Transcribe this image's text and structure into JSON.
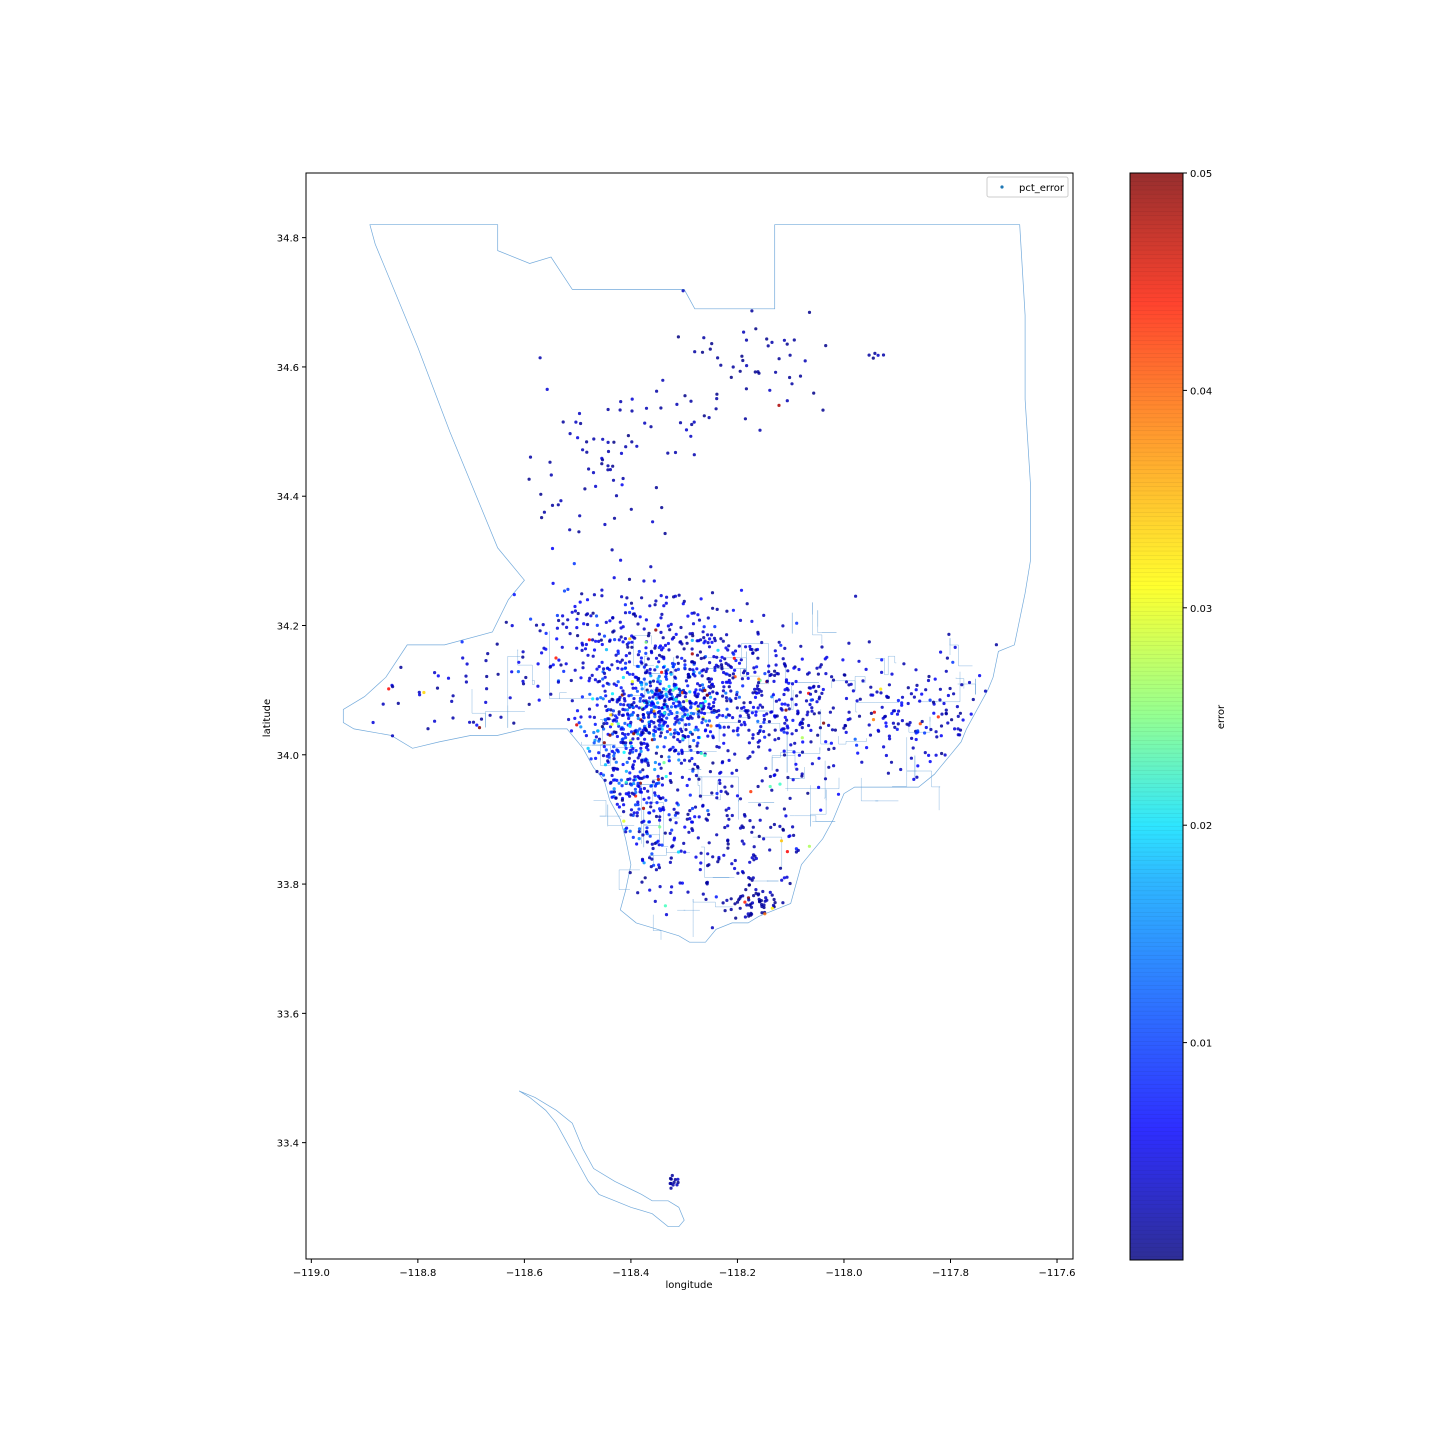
{
  "chart_data": {
    "type": "scatter",
    "xlabel": "longitude",
    "ylabel": "latitude",
    "xlim": [
      -119.01,
      -117.57
    ],
    "ylim": [
      33.22,
      34.9
    ],
    "xticks": [
      -119.0,
      -118.8,
      -118.6,
      -118.4,
      -118.2,
      -118.0,
      -117.8,
      -117.6
    ],
    "xtick_labels": [
      "−119.0",
      "−118.8",
      "−118.6",
      "−118.4",
      "−118.2",
      "−118.0",
      "−117.8",
      "−117.6"
    ],
    "yticks": [
      33.4,
      33.6,
      33.8,
      34.0,
      34.2,
      34.4,
      34.6,
      34.8
    ],
    "ytick_labels": [
      "33.4",
      "33.6",
      "33.8",
      "34.0",
      "34.2",
      "34.4",
      "34.6",
      "34.8"
    ],
    "legend": {
      "label": "pct_error",
      "position": "top-right"
    },
    "colorbar": {
      "label": "error",
      "range": [
        0.0,
        0.05
      ],
      "colormap": "jet",
      "ticks": [
        0.01,
        0.02,
        0.03,
        0.04,
        0.05
      ],
      "tick_labels": [
        "0.01",
        "0.02",
        "0.03",
        "0.04",
        "0.05"
      ]
    },
    "boundary_color": "#5b9bd5",
    "county_outline": [
      [
        -118.89,
        34.82
      ],
      [
        -118.65,
        34.82
      ],
      [
        -118.65,
        34.78
      ],
      [
        -118.59,
        34.76
      ],
      [
        -118.55,
        34.77
      ],
      [
        -118.51,
        34.72
      ],
      [
        -118.3,
        34.72
      ],
      [
        -118.28,
        34.69
      ],
      [
        -118.13,
        34.69
      ],
      [
        -118.13,
        34.82
      ],
      [
        -117.67,
        34.82
      ],
      [
        -117.66,
        34.68
      ],
      [
        -117.66,
        34.55
      ],
      [
        -117.65,
        34.42
      ],
      [
        -117.65,
        34.3
      ],
      [
        -117.66,
        34.25
      ],
      [
        -117.68,
        34.17
      ],
      [
        -117.71,
        34.16
      ],
      [
        -117.72,
        34.12
      ],
      [
        -117.73,
        34.1
      ],
      [
        -117.75,
        34.07
      ],
      [
        -117.77,
        34.04
      ],
      [
        -117.78,
        34.02
      ],
      [
        -117.8,
        34.0
      ],
      [
        -117.82,
        33.98
      ],
      [
        -117.83,
        33.97
      ],
      [
        -117.86,
        33.95
      ],
      [
        -117.9,
        33.95
      ],
      [
        -117.94,
        33.95
      ],
      [
        -117.98,
        33.95
      ],
      [
        -118.0,
        33.94
      ],
      [
        -118.01,
        33.92
      ],
      [
        -118.02,
        33.9
      ],
      [
        -118.04,
        33.87
      ],
      [
        -118.06,
        33.85
      ],
      [
        -118.08,
        33.83
      ],
      [
        -118.09,
        33.8
      ],
      [
        -118.1,
        33.77
      ],
      [
        -118.13,
        33.76
      ],
      [
        -118.16,
        33.75
      ],
      [
        -118.18,
        33.74
      ],
      [
        -118.21,
        33.74
      ],
      [
        -118.24,
        33.73
      ],
      [
        -118.26,
        33.71
      ],
      [
        -118.29,
        33.71
      ],
      [
        -118.31,
        33.72
      ],
      [
        -118.35,
        33.73
      ],
      [
        -118.39,
        33.74
      ],
      [
        -118.42,
        33.76
      ],
      [
        -118.41,
        33.79
      ],
      [
        -118.4,
        33.83
      ],
      [
        -118.41,
        33.87
      ],
      [
        -118.42,
        33.9
      ],
      [
        -118.44,
        33.93
      ],
      [
        -118.45,
        33.96
      ],
      [
        -118.47,
        33.98
      ],
      [
        -118.49,
        34.01
      ],
      [
        -118.52,
        34.04
      ],
      [
        -118.56,
        34.04
      ],
      [
        -118.6,
        34.04
      ],
      [
        -118.65,
        34.03
      ],
      [
        -118.7,
        34.03
      ],
      [
        -118.76,
        34.02
      ],
      [
        -118.81,
        34.01
      ],
      [
        -118.85,
        34.03
      ],
      [
        -118.92,
        34.04
      ],
      [
        -118.94,
        34.05
      ],
      [
        -118.94,
        34.07
      ],
      [
        -118.9,
        34.09
      ],
      [
        -118.86,
        34.12
      ],
      [
        -118.82,
        34.17
      ],
      [
        -118.75,
        34.17
      ],
      [
        -118.66,
        34.19
      ],
      [
        -118.63,
        34.24
      ],
      [
        -118.6,
        34.27
      ],
      [
        -118.65,
        34.32
      ],
      [
        -118.74,
        34.5
      ],
      [
        -118.8,
        34.63
      ],
      [
        -118.88,
        34.79
      ],
      [
        -118.89,
        34.82
      ]
    ],
    "island_outline": [
      [
        -118.61,
        33.48
      ],
      [
        -118.58,
        33.47
      ],
      [
        -118.54,
        33.45
      ],
      [
        -118.51,
        33.43
      ],
      [
        -118.49,
        33.39
      ],
      [
        -118.47,
        33.36
      ],
      [
        -118.43,
        33.34
      ],
      [
        -118.38,
        33.32
      ],
      [
        -118.36,
        33.31
      ],
      [
        -118.33,
        33.31
      ],
      [
        -118.31,
        33.3
      ],
      [
        -118.3,
        33.28
      ],
      [
        -118.31,
        33.27
      ],
      [
        -118.33,
        33.27
      ],
      [
        -118.36,
        33.29
      ],
      [
        -118.4,
        33.3
      ],
      [
        -118.43,
        33.31
      ],
      [
        -118.46,
        33.32
      ],
      [
        -118.48,
        33.34
      ],
      [
        -118.5,
        33.37
      ],
      [
        -118.52,
        33.4
      ],
      [
        -118.54,
        33.43
      ],
      [
        -118.56,
        33.45
      ],
      [
        -118.59,
        33.47
      ],
      [
        -118.61,
        33.48
      ]
    ],
    "clusters": [
      {
        "lon": -118.34,
        "lat": 34.08,
        "spread": [
          0.05,
          0.04
        ],
        "count": 380,
        "error_mean": 0.012
      },
      {
        "lon": -118.43,
        "lat": 34.03,
        "spread": [
          0.04,
          0.05
        ],
        "count": 220,
        "error_mean": 0.01
      },
      {
        "lon": -118.37,
        "lat": 33.93,
        "spread": [
          0.04,
          0.06
        ],
        "count": 200,
        "error_mean": 0.008
      },
      {
        "lon": -118.25,
        "lat": 34.07,
        "spread": [
          0.07,
          0.06
        ],
        "count": 200,
        "error_mean": 0.006
      },
      {
        "lon": -118.09,
        "lat": 34.08,
        "spread": [
          0.08,
          0.05
        ],
        "count": 220,
        "error_mean": 0.005
      },
      {
        "lon": -117.85,
        "lat": 34.07,
        "spread": [
          0.07,
          0.05
        ],
        "count": 150,
        "error_mean": 0.005
      },
      {
        "lon": -118.2,
        "lat": 33.88,
        "spread": [
          0.09,
          0.07
        ],
        "count": 180,
        "error_mean": 0.004
      },
      {
        "lon": -118.45,
        "lat": 34.18,
        "spread": [
          0.08,
          0.05
        ],
        "count": 180,
        "error_mean": 0.006
      },
      {
        "lon": -118.25,
        "lat": 34.17,
        "spread": [
          0.07,
          0.04
        ],
        "count": 120,
        "error_mean": 0.005
      },
      {
        "lon": -118.7,
        "lat": 34.1,
        "spread": [
          0.12,
          0.04
        ],
        "count": 70,
        "error_mean": 0.004
      },
      {
        "lon": -118.48,
        "lat": 33.82,
        "spread": [
          0.02,
          0.05
        ],
        "count": 60,
        "error_mean": 0.005
      },
      {
        "lon": -118.17,
        "lat": 33.77,
        "spread": [
          0.03,
          0.02
        ],
        "count": 70,
        "error_mean": 0.002
      },
      {
        "lon": -118.47,
        "lat": 34.44,
        "spread": [
          0.07,
          0.05
        ],
        "count": 60,
        "error_mean": 0.003
      },
      {
        "lon": -118.15,
        "lat": 34.62,
        "spread": [
          0.08,
          0.05
        ],
        "count": 50,
        "error_mean": 0.002
      },
      {
        "lon": -118.3,
        "lat": 34.53,
        "spread": [
          0.08,
          0.04
        ],
        "count": 20,
        "error_mean": 0.003
      },
      {
        "lon": -118.32,
        "lat": 33.34,
        "spread": [
          0.005,
          0.01
        ],
        "count": 12,
        "error_mean": 0.002
      },
      {
        "lon": -117.94,
        "lat": 34.62,
        "spread": [
          0.01,
          0.01
        ],
        "count": 5,
        "error_mean": 0.002
      }
    ]
  }
}
